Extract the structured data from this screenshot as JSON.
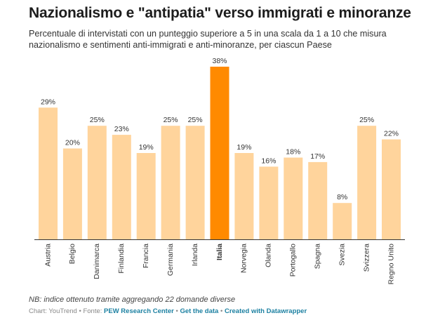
{
  "title": "Nazionalismo e \"antipatia\" verso immigrati e minoranze",
  "subtitle": "Percentuale di intervistati con un punteggio superiore a 5 in una scala da 1 a 10 che misura nazionalismo e sentimenti anti-immigrati e anti-minoranze, per ciascun Paese",
  "note": "NB: indice ottenuto tramite aggregando 22 domande diverse",
  "footer": {
    "chart_label": "Chart: YouTrend",
    "source_prefix": "Fonte:",
    "source": "PEW Research Center",
    "get_data": "Get the data",
    "created_with": "Created with Datawrapper",
    "separator": "•"
  },
  "colors": {
    "bar": "#ffd49c",
    "highlight": "#ff8a00",
    "baseline": "#333333",
    "label": "#333333",
    "link": "#1d81a2"
  },
  "chart_data": {
    "type": "bar",
    "categories": [
      "Austria",
      "Belgio",
      "Danimarca",
      "Finlandia",
      "Francia",
      "Germania",
      "Irlanda",
      "Italia",
      "Norvegia",
      "Olanda",
      "Portogallo",
      "Spagna",
      "Svezia",
      "Svizzera",
      "Regno Unito"
    ],
    "values": [
      29,
      20,
      25,
      23,
      19,
      25,
      25,
      38,
      19,
      16,
      18,
      17,
      8,
      25,
      22
    ],
    "value_labels": [
      "29%",
      "20%",
      "25%",
      "23%",
      "19%",
      "25%",
      "25%",
      "38%",
      "19%",
      "16%",
      "18%",
      "17%",
      "8%",
      "25%",
      "22%"
    ],
    "highlight": "Italia",
    "unit": "%",
    "ylim": [
      0,
      38
    ],
    "grid": false,
    "legend": "none"
  }
}
